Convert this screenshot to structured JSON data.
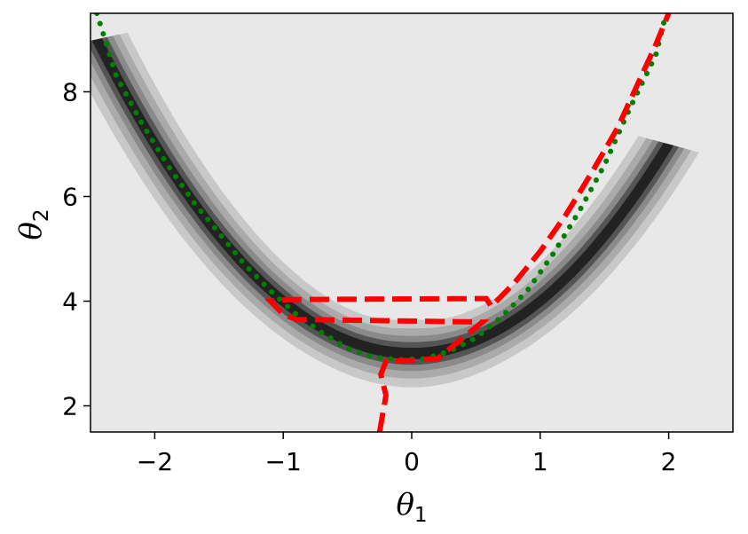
{
  "chart_data": {
    "type": "contour",
    "title": "",
    "xlabel": {
      "symbol": "θ",
      "subscript": "1"
    },
    "ylabel": {
      "symbol": "θ",
      "subscript": "2"
    },
    "xlim": [
      -2.5,
      2.5
    ],
    "ylim": [
      1.5,
      9.5
    ],
    "xticks": [
      -2,
      -1,
      0,
      1,
      2
    ],
    "yticks": [
      2,
      4,
      6,
      8
    ],
    "xtick_labels": [
      "−2",
      "−1",
      "0",
      "1",
      "2"
    ],
    "ytick_labels": [
      "2",
      "4",
      "6",
      "8"
    ],
    "grid": false,
    "background_color": "#e8e8e8",
    "density": {
      "ridge": "y = x^2 + 3 (approx.)",
      "levels": [
        {
          "name": "level-1",
          "color": "#c8c8c8",
          "width": 0.27
        },
        {
          "name": "level-2",
          "color": "#aaaaaa",
          "width": 0.2
        },
        {
          "name": "level-3",
          "color": "#8a8a8a",
          "width": 0.14
        },
        {
          "name": "level-4",
          "color": "#555555",
          "width": 0.09
        },
        {
          "name": "level-5",
          "color": "#222222",
          "width": 0.045
        }
      ]
    },
    "series": [
      {
        "style": "dotted",
        "color": "#007f00",
        "x": [
          -2.45,
          -2.3,
          -2.1,
          -1.9,
          -1.7,
          -1.5,
          -1.3,
          -1.1,
          -0.9,
          -0.7,
          -0.5,
          -0.3,
          -0.1,
          0.1,
          0.3,
          0.5,
          0.7,
          0.9,
          1.1,
          1.3,
          1.5,
          1.7,
          1.9,
          1.98
        ],
        "y": [
          9.5,
          8.3,
          7.4,
          6.6,
          5.9,
          5.3,
          4.7,
          4.2,
          3.75,
          3.4,
          3.1,
          2.93,
          2.88,
          2.9,
          3.05,
          3.3,
          3.7,
          4.2,
          4.9,
          5.7,
          6.6,
          7.7,
          8.7,
          9.5
        ]
      },
      {
        "style": "dashed",
        "color": "#ff0000",
        "x": [
          -0.25,
          -0.2,
          -0.24,
          -0.2,
          0.0,
          0.2,
          0.35,
          0.55,
          -0.9,
          -1.0,
          -1.1,
          -0.95,
          0.58,
          0.62,
          0.8,
          1.0,
          1.2,
          1.4,
          1.6,
          1.75,
          1.9,
          2.0
        ],
        "y": [
          1.5,
          2.2,
          2.6,
          2.85,
          2.87,
          2.9,
          3.2,
          3.6,
          3.65,
          3.75,
          4.0,
          4.03,
          4.05,
          3.9,
          4.35,
          4.95,
          5.65,
          6.45,
          7.3,
          8.1,
          8.9,
          9.5
        ]
      }
    ]
  }
}
